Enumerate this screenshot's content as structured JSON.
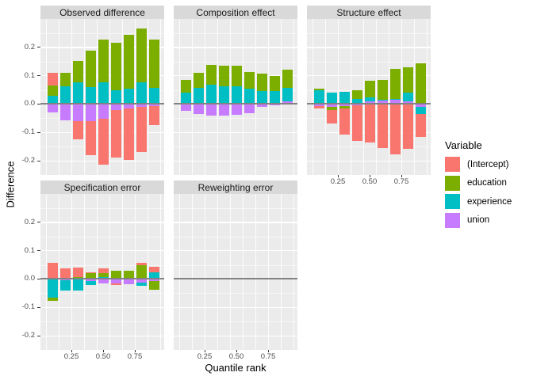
{
  "axes": {
    "y_title": "Difference",
    "x_title": "Quantile rank",
    "y_ticks": [
      "0.2",
      "0.1",
      "0.0",
      "-0.1",
      "-0.2"
    ],
    "y_tick_values": [
      0.2,
      0.1,
      0.0,
      -0.1,
      -0.2
    ],
    "x_ticks": [
      "0.25",
      "0.50",
      "0.75"
    ],
    "x_tick_values": [
      0.25,
      0.5,
      0.75
    ]
  },
  "legend": {
    "title": "Variable",
    "entries": [
      {
        "label": "(Intercept)",
        "color": "#F8766D"
      },
      {
        "label": "education",
        "color": "#7CAE00"
      },
      {
        "label": "experience",
        "color": "#00BFC4"
      },
      {
        "label": "union",
        "color": "#C77CFF"
      }
    ]
  },
  "chart_data": {
    "type": "bar",
    "stacked": true,
    "x": [
      0.1,
      0.2,
      0.3,
      0.4,
      0.5,
      0.6,
      0.7,
      0.8,
      0.9
    ],
    "xlabel": "Quantile rank",
    "ylabel": "Difference",
    "ylim": [
      -0.25,
      0.3
    ],
    "grid": true,
    "legend_position": "right",
    "stack_order": [
      "union",
      "experience",
      "education",
      "(Intercept)"
    ],
    "series_colors": {
      "(Intercept)": "#F8766D",
      "education": "#7CAE00",
      "experience": "#00BFC4",
      "union": "#C77CFF"
    },
    "panels": [
      {
        "title": "Observed difference",
        "series": [
          {
            "name": "(Intercept)",
            "values": [
              0.045,
              0.0,
              -0.065,
              -0.121,
              -0.162,
              -0.168,
              -0.18,
              -0.158,
              -0.065
            ]
          },
          {
            "name": "education",
            "values": [
              0.035,
              0.047,
              0.077,
              0.128,
              0.15,
              0.165,
              0.19,
              0.19,
              0.17
            ]
          },
          {
            "name": "experience",
            "values": [
              0.03,
              0.062,
              0.076,
              0.06,
              0.078,
              0.05,
              0.055,
              0.077,
              0.058
            ]
          },
          {
            "name": "union",
            "values": [
              -0.03,
              -0.057,
              -0.059,
              -0.059,
              -0.052,
              -0.021,
              -0.016,
              -0.01,
              -0.008
            ]
          }
        ]
      },
      {
        "title": "Composition effect",
        "series": [
          {
            "name": "(Intercept)",
            "values": [
              0,
              0,
              0,
              0,
              0,
              0,
              0,
              0,
              0
            ]
          },
          {
            "name": "education",
            "values": [
              0.047,
              0.052,
              0.071,
              0.071,
              0.072,
              0.059,
              0.061,
              0.055,
              0.064
            ]
          },
          {
            "name": "experience",
            "values": [
              0.039,
              0.058,
              0.067,
              0.064,
              0.064,
              0.055,
              0.047,
              0.045,
              0.047
            ]
          },
          {
            "name": "union",
            "values": [
              -0.024,
              -0.036,
              -0.041,
              -0.042,
              -0.038,
              -0.031,
              -0.01,
              -0.005,
              0.01
            ]
          }
        ]
      },
      {
        "title": "Structure effect",
        "series": [
          {
            "name": "(Intercept)",
            "values": [
              -0.007,
              -0.047,
              -0.093,
              -0.126,
              -0.136,
              -0.156,
              -0.178,
              -0.159,
              -0.082
            ]
          },
          {
            "name": "education",
            "values": [
              0.006,
              -0.011,
              -0.007,
              0.03,
              0.059,
              0.07,
              0.104,
              0.088,
              0.143
            ]
          },
          {
            "name": "experience",
            "values": [
              0.048,
              0.039,
              0.042,
              0.018,
              0.013,
              0.002,
              0.001,
              0.03,
              -0.024
            ]
          },
          {
            "name": "union",
            "values": [
              -0.008,
              -0.011,
              -0.008,
              -0.004,
              0.011,
              0.013,
              0.018,
              0.011,
              -0.011
            ]
          }
        ]
      },
      {
        "title": "Specification error",
        "series": [
          {
            "name": "(Intercept)",
            "values": [
              0.056,
              0.038,
              0.033,
              0.004,
              0.016,
              -0.004,
              0.0,
              0.006,
              0.019
            ]
          },
          {
            "name": "education",
            "values": [
              -0.01,
              0.0,
              0.006,
              0.021,
              0.016,
              0.029,
              0.028,
              0.05,
              -0.033
            ]
          },
          {
            "name": "experience",
            "values": [
              -0.065,
              -0.039,
              -0.038,
              -0.013,
              0.006,
              0.0,
              0.002,
              -0.011,
              0.024
            ]
          },
          {
            "name": "union",
            "values": [
              -0.002,
              -0.003,
              -0.002,
              -0.008,
              -0.016,
              -0.016,
              -0.017,
              -0.012,
              -0.006
            ]
          }
        ]
      },
      {
        "title": "Reweighting error",
        "series": [
          {
            "name": "(Intercept)",
            "values": [
              0,
              0,
              0,
              0,
              0,
              0,
              0,
              0,
              0
            ]
          },
          {
            "name": "education",
            "values": [
              0,
              0,
              0,
              0,
              0,
              0,
              0,
              0,
              0
            ]
          },
          {
            "name": "experience",
            "values": [
              0,
              0,
              0,
              0,
              0,
              0,
              0,
              0,
              0
            ]
          },
          {
            "name": "union",
            "values": [
              0,
              0,
              0,
              0,
              0,
              0,
              0,
              0,
              0
            ]
          }
        ]
      }
    ]
  }
}
